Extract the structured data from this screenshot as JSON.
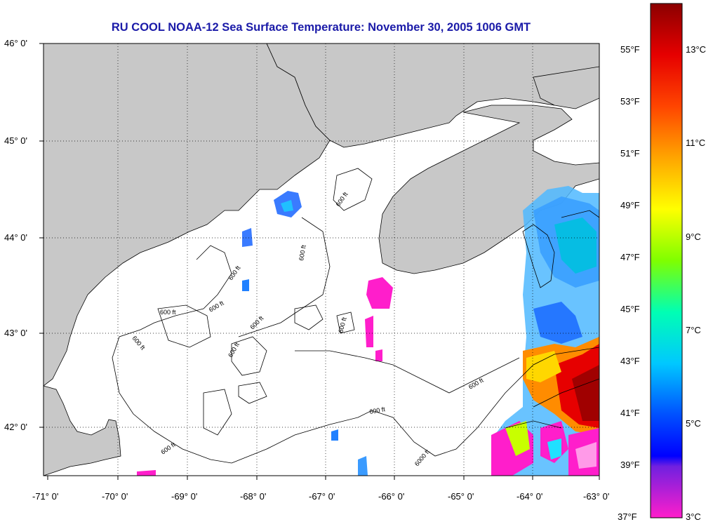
{
  "title": "RU COOL  NOAA-12  Sea Surface Temperature:  November 30, 2005 1006 GMT",
  "latitude_labels": [
    "46° 0'",
    "45° 0'",
    "44° 0'",
    "43° 0'",
    "42° 0'"
  ],
  "longitude_labels": [
    "-71° 0'",
    "-70° 0'",
    "-69° 0'",
    "-68° 0'",
    "-67° 0'",
    "-66° 0'",
    "-65° 0'",
    "-64° 0'",
    "-63° 0'"
  ],
  "contour_labels": [
    "600 ft",
    "600 ft",
    "600 ft",
    "600 ft",
    "600 ft",
    "600 ft",
    "600 ft",
    "600 ft",
    "600 ft",
    "600 ft",
    "600 ft",
    "600 ft",
    "6000 ft"
  ],
  "colorbar": {
    "fahrenheit_labels": [
      "55°F",
      "53°F",
      "51°F",
      "49°F",
      "47°F",
      "45°F",
      "43°F",
      "41°F",
      "39°F",
      "37°F"
    ],
    "celsius_labels": [
      "13°C",
      "11°C",
      "9°C",
      "7°C",
      "5°C",
      "3°C"
    ],
    "colors": [
      "#8b0000",
      "#ff0000",
      "#ff8c00",
      "#ffff00",
      "#00ff7f",
      "#00ffff",
      "#1e90ff",
      "#0000ff",
      "#8a2be2",
      "#ff1ecb"
    ]
  },
  "colors": {
    "land": "#c8c8c8",
    "ocean": "#ffffff",
    "title": "#1a1aa8"
  }
}
